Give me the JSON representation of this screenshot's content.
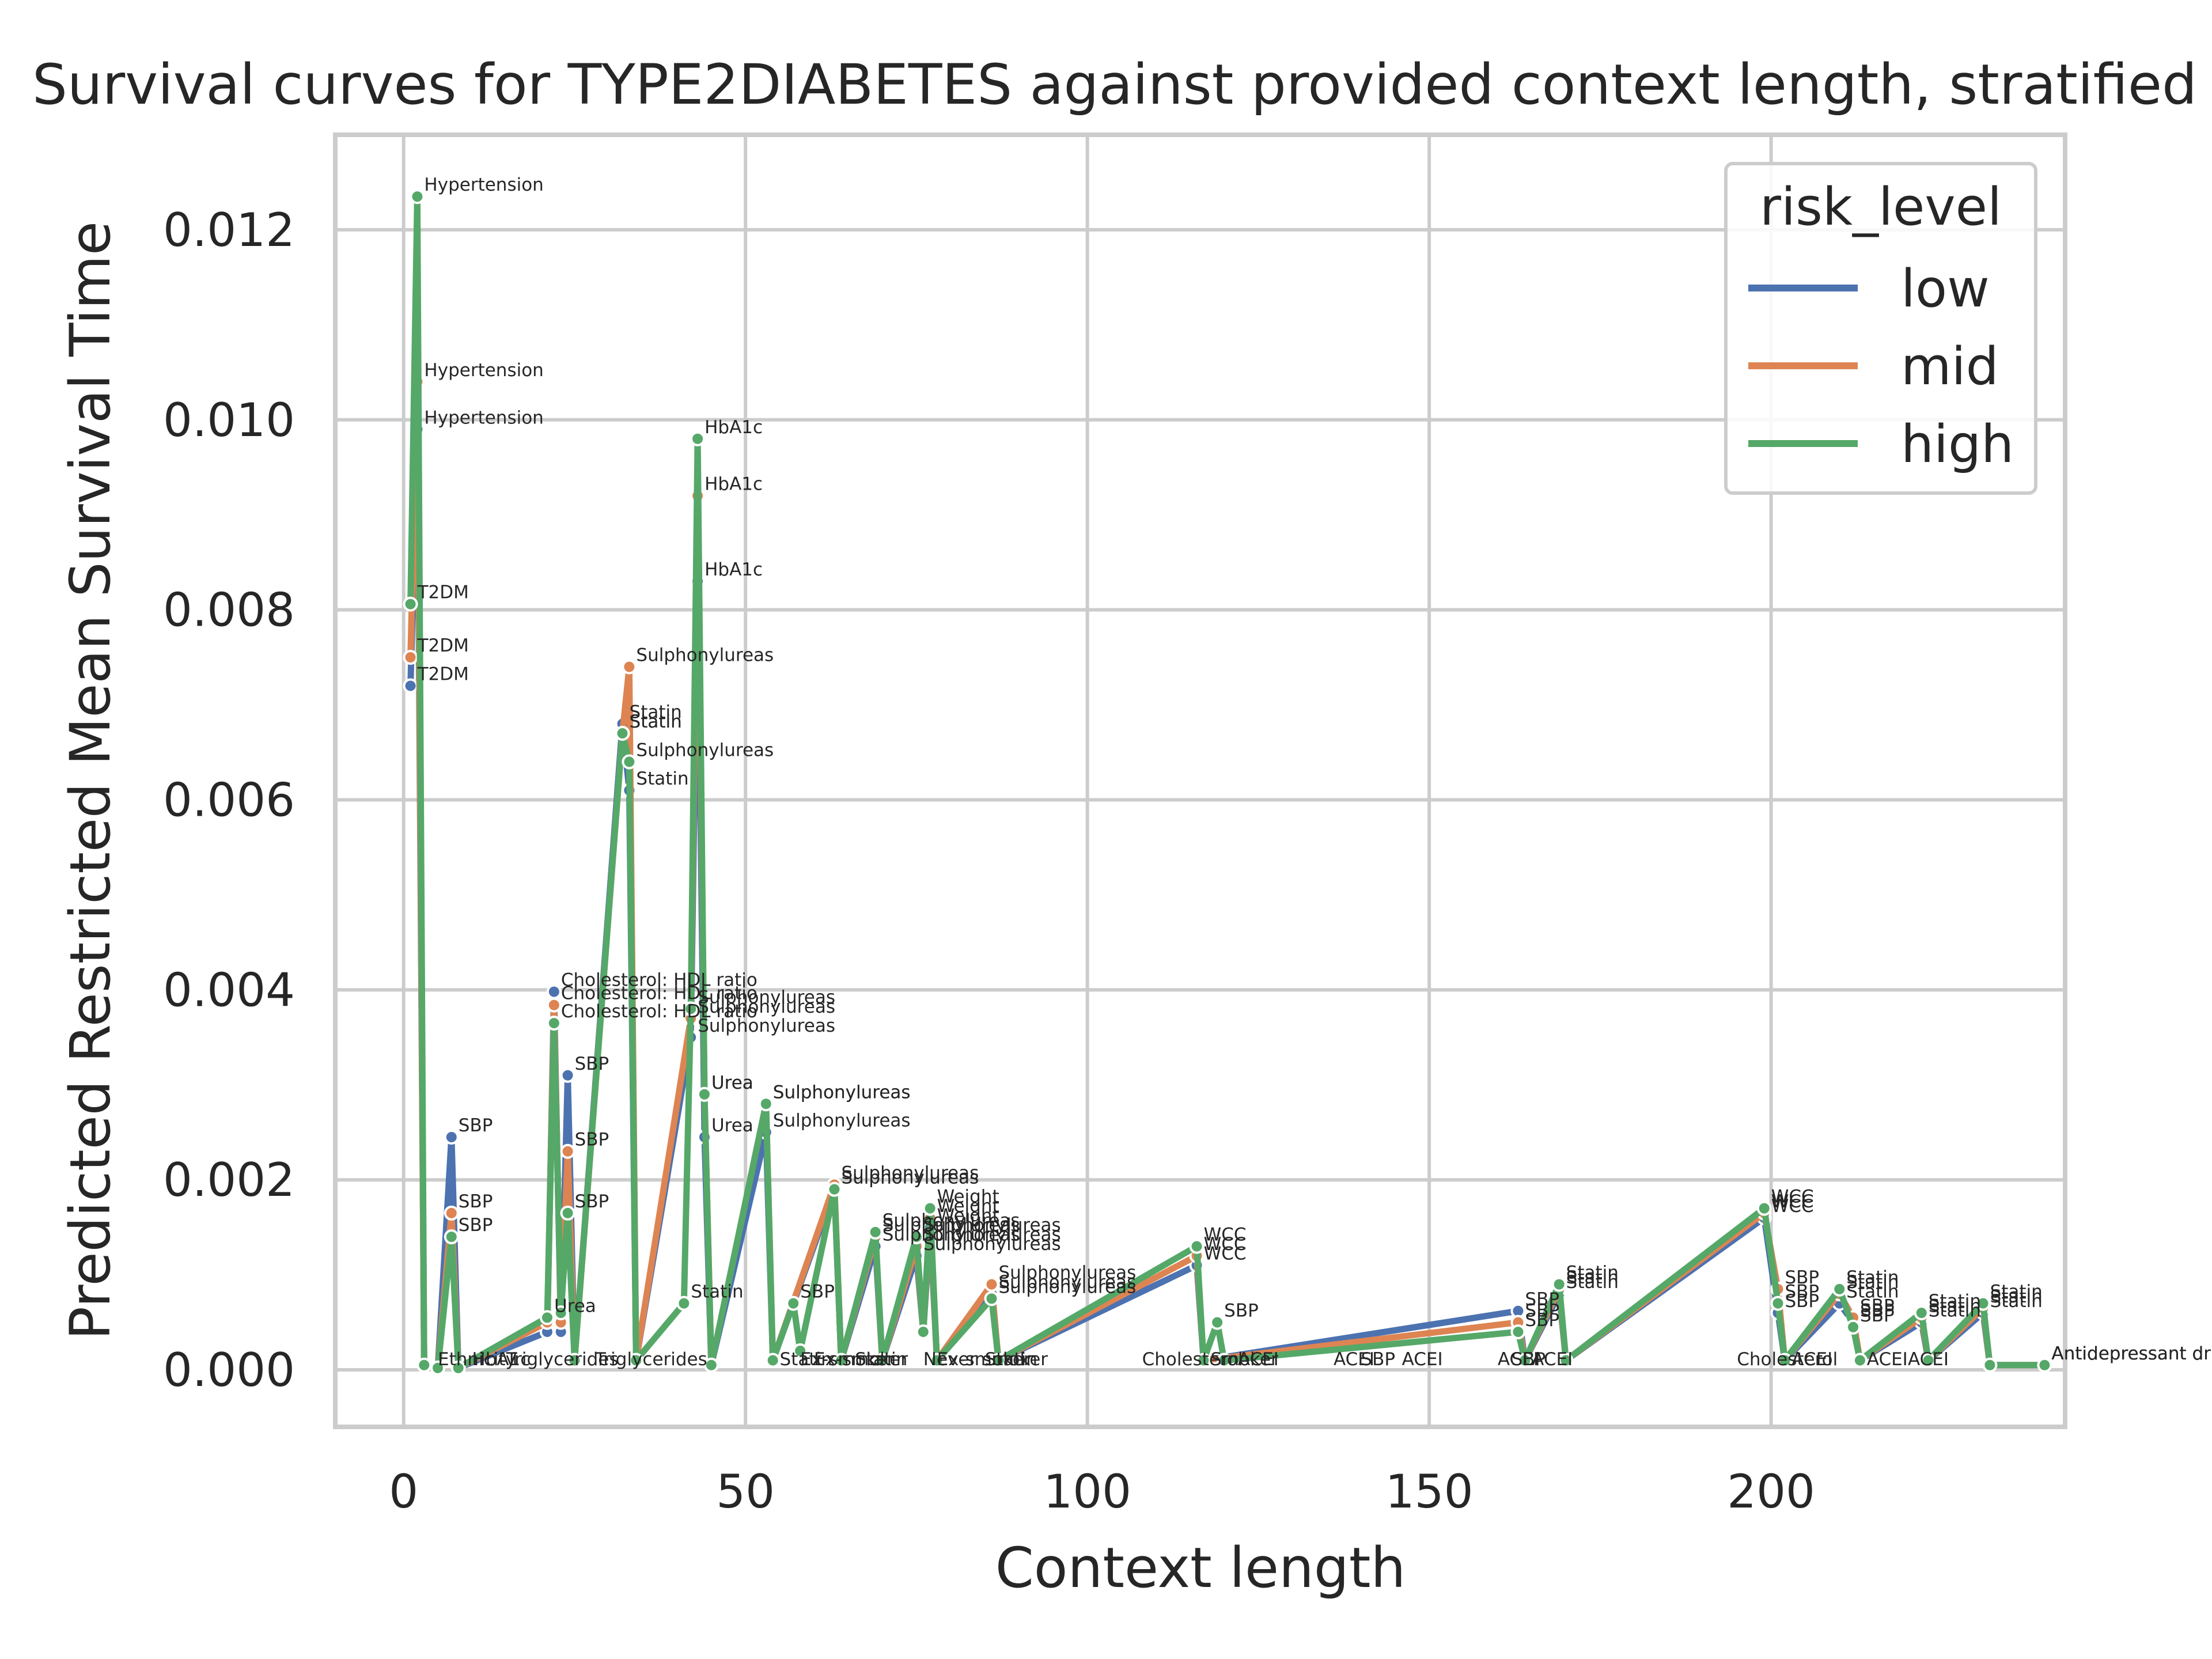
{
  "chart_data": {
    "type": "line",
    "title": "Survival curves for TYPE2DIABETES against provided context length, stratified",
    "xlabel": "Context length",
    "ylabel": "Predicted Restricted Mean Survival Time",
    "xlim": [
      -10,
      243
    ],
    "ylim": [
      -0.0006,
      0.013
    ],
    "xticks": [
      0,
      50,
      100,
      150,
      200
    ],
    "xtick_labels": [
      "0",
      "50",
      "100",
      "150",
      "200"
    ],
    "yticks": [
      0.0,
      0.002,
      0.004,
      0.006,
      0.008,
      0.01,
      0.012
    ],
    "ytick_labels": [
      "0.000",
      "0.002",
      "0.004",
      "0.006",
      "0.008",
      "0.010",
      "0.012"
    ],
    "grid": true,
    "legend": {
      "title": "risk_level",
      "placement": "top-right"
    },
    "series": [
      {
        "name": "low",
        "color": "#4c72b0",
        "points": [
          [
            1,
            0.0072,
            "T2DM"
          ],
          [
            2,
            0.0099,
            "Hypertension"
          ],
          [
            3,
            5e-05,
            ""
          ],
          [
            5,
            2e-05,
            ""
          ],
          [
            7,
            0.00245,
            "SBP"
          ],
          [
            8,
            2e-05,
            ""
          ],
          [
            21,
            0.0004,
            ""
          ],
          [
            22,
            0.00398,
            "Cholesterol: HDL ratio"
          ],
          [
            23,
            0.0004,
            ""
          ],
          [
            24,
            0.0031,
            "SBP"
          ],
          [
            25,
            0.0001,
            ""
          ],
          [
            32,
            0.0068,
            "Statin"
          ],
          [
            33,
            0.0061,
            "Statin"
          ],
          [
            34,
            0.0001,
            ""
          ],
          [
            42,
            0.0035,
            "Sulphonylureas"
          ],
          [
            43,
            0.0083,
            "HbA1c"
          ],
          [
            44,
            0.00245,
            "Urea"
          ],
          [
            45,
            5e-05,
            ""
          ],
          [
            53,
            0.0025,
            "Sulphonylureas"
          ],
          [
            54,
            0.0001,
            ""
          ],
          [
            63,
            0.0019,
            "Sulphonylureas"
          ],
          [
            64,
            0.0001,
            ""
          ],
          [
            69,
            0.0013,
            "Sulphonylureas"
          ],
          [
            70,
            0.0001,
            ""
          ],
          [
            75,
            0.0012,
            "Sulphonylureas"
          ],
          [
            76,
            0.0004,
            ""
          ],
          [
            77,
            0.0015,
            "Weight"
          ],
          [
            78,
            0.0001,
            ""
          ],
          [
            86,
            0.0008,
            "Sulphonylureas"
          ],
          [
            87,
            0.0001,
            ""
          ],
          [
            116,
            0.0011,
            "WCC"
          ],
          [
            117,
            0.0001,
            ""
          ],
          [
            163,
            0.00062,
            "SBP"
          ],
          [
            164,
            0.0001,
            ""
          ],
          [
            169,
            0.0008,
            "Statin"
          ],
          [
            170,
            0.0001,
            ""
          ],
          [
            199,
            0.0016,
            "WCC"
          ],
          [
            201,
            0.0006,
            "SBP"
          ],
          [
            202,
            0.0001,
            ""
          ],
          [
            210,
            0.0007,
            "Statin"
          ],
          [
            212,
            0.0005,
            "SBP"
          ],
          [
            213,
            0.0001,
            ""
          ],
          [
            222,
            0.0005,
            "Statin"
          ],
          [
            223,
            0.0001,
            ""
          ],
          [
            231,
            0.0006,
            "Statin"
          ],
          [
            232,
            5e-05,
            ""
          ],
          [
            240,
            5e-05,
            "Antidepressant drug"
          ]
        ]
      },
      {
        "name": "mid",
        "color": "#dd8452",
        "points": [
          [
            1,
            0.0075,
            "T2DM"
          ],
          [
            2,
            0.0104,
            "Hypertension"
          ],
          [
            3,
            5e-05,
            ""
          ],
          [
            5,
            2e-05,
            ""
          ],
          [
            7,
            0.00165,
            "SBP"
          ],
          [
            8,
            2e-05,
            ""
          ],
          [
            21,
            0.0005,
            ""
          ],
          [
            22,
            0.00384,
            "Cholesterol: HDL ratio"
          ],
          [
            23,
            0.0005,
            ""
          ],
          [
            24,
            0.0023,
            "SBP"
          ],
          [
            25,
            0.0001,
            ""
          ],
          [
            32,
            0.0067,
            "Statin"
          ],
          [
            33,
            0.0074,
            "Sulphonylureas"
          ],
          [
            34,
            0.0001,
            ""
          ],
          [
            42,
            0.0037,
            "Sulphonylureas"
          ],
          [
            43,
            0.0092,
            "HbA1c"
          ],
          [
            44,
            0.0029,
            "Urea"
          ],
          [
            45,
            5e-05,
            ""
          ],
          [
            53,
            0.0028,
            "Sulphonylureas"
          ],
          [
            54,
            0.0001,
            ""
          ],
          [
            63,
            0.00195,
            "Sulphonylureas"
          ],
          [
            64,
            0.0001,
            ""
          ],
          [
            69,
            0.0014,
            "Sulphonylureas"
          ],
          [
            70,
            0.0001,
            ""
          ],
          [
            75,
            0.0013,
            "Sulphonylureas"
          ],
          [
            76,
            0.0004,
            ""
          ],
          [
            77,
            0.0016,
            "Weight"
          ],
          [
            78,
            0.0001,
            ""
          ],
          [
            86,
            0.0009,
            "Sulphonylureas"
          ],
          [
            87,
            0.0001,
            ""
          ],
          [
            116,
            0.0012,
            "WCC"
          ],
          [
            117,
            0.0001,
            ""
          ],
          [
            163,
            0.0005,
            "SBP"
          ],
          [
            164,
            0.0001,
            ""
          ],
          [
            169,
            0.00085,
            "Statin"
          ],
          [
            170,
            0.0001,
            ""
          ],
          [
            199,
            0.00165,
            "WCC"
          ],
          [
            201,
            0.00085,
            "SBP"
          ],
          [
            202,
            0.0001,
            ""
          ],
          [
            210,
            0.0008,
            "Statin"
          ],
          [
            212,
            0.00055,
            "SBP"
          ],
          [
            213,
            0.0001,
            ""
          ],
          [
            222,
            0.00055,
            "Statin"
          ],
          [
            223,
            0.0001,
            ""
          ],
          [
            231,
            0.00065,
            "Statin"
          ],
          [
            232,
            5e-05,
            ""
          ],
          [
            240,
            5e-05,
            "Antidepressant drug"
          ]
        ]
      },
      {
        "name": "high",
        "color": "#55a868",
        "points": [
          [
            1,
            0.00806,
            "T2DM"
          ],
          [
            2,
            0.01235,
            "Hypertension"
          ],
          [
            3,
            5e-05,
            ""
          ],
          [
            5,
            2e-05,
            ""
          ],
          [
            7,
            0.0014,
            "SBP"
          ],
          [
            8,
            2e-05,
            ""
          ],
          [
            21,
            0.00055,
            "Urea"
          ],
          [
            22,
            0.00365,
            "Cholesterol: HDL ratio"
          ],
          [
            23,
            0.0006,
            ""
          ],
          [
            24,
            0.00165,
            "SBP"
          ],
          [
            25,
            0.0001,
            ""
          ],
          [
            32,
            0.0067,
            "Statin"
          ],
          [
            33,
            0.0064,
            "Sulphonylureas"
          ],
          [
            34,
            0.0001,
            ""
          ],
          [
            41,
            0.0007,
            "Statin"
          ],
          [
            42,
            0.0038,
            "Sulphonylureas"
          ],
          [
            43,
            0.0098,
            "HbA1c"
          ],
          [
            44,
            0.0029,
            "Urea"
          ],
          [
            45,
            5e-05,
            ""
          ],
          [
            53,
            0.0028,
            "Sulphonylureas"
          ],
          [
            54,
            0.0001,
            ""
          ],
          [
            57,
            0.0007,
            "SBP"
          ],
          [
            58,
            0.0002,
            ""
          ],
          [
            63,
            0.0019,
            "Sulphonylureas"
          ],
          [
            64,
            0.0001,
            ""
          ],
          [
            69,
            0.00145,
            "Sulphonylureas"
          ],
          [
            70,
            0.0001,
            ""
          ],
          [
            75,
            0.0014,
            "Sulphonylureas"
          ],
          [
            76,
            0.0004,
            ""
          ],
          [
            77,
            0.0017,
            "Weight"
          ],
          [
            78,
            0.0001,
            ""
          ],
          [
            86,
            0.00075,
            "Sulphonylureas"
          ],
          [
            87,
            0.0001,
            ""
          ],
          [
            116,
            0.0013,
            "WCC"
          ],
          [
            117,
            0.0001,
            ""
          ],
          [
            119,
            0.0005,
            "SBP"
          ],
          [
            120,
            0.0001,
            ""
          ],
          [
            163,
            0.0004,
            "SBP"
          ],
          [
            164,
            0.0001,
            ""
          ],
          [
            169,
            0.0009,
            "Statin"
          ],
          [
            170,
            0.0001,
            ""
          ],
          [
            199,
            0.0017,
            "WCC"
          ],
          [
            201,
            0.0007,
            "SBP"
          ],
          [
            202,
            0.0001,
            ""
          ],
          [
            210,
            0.00085,
            "Statin"
          ],
          [
            212,
            0.00045,
            "SBP"
          ],
          [
            213,
            0.0001,
            ""
          ],
          [
            222,
            0.0006,
            "Statin"
          ],
          [
            223,
            0.0001,
            ""
          ],
          [
            231,
            0.0007,
            "Statin"
          ],
          [
            232,
            5e-05,
            ""
          ],
          [
            240,
            5e-05,
            "Antidepressant drug"
          ]
        ]
      }
    ],
    "baseline_labels": [
      [
        5,
        "Ethnicity"
      ],
      [
        10,
        "HbA1c"
      ],
      [
        15,
        "Triglycerides"
      ],
      [
        28,
        "Triglycerides"
      ],
      [
        55,
        "Statin"
      ],
      [
        58,
        "Ex-smoker"
      ],
      [
        60,
        "Ex-smoker"
      ],
      [
        66,
        "Statin"
      ],
      [
        76,
        "Never smoker"
      ],
      [
        78,
        "Ex-smoker"
      ],
      [
        85,
        "Statin"
      ],
      [
        108,
        "Cholesterol"
      ],
      [
        118,
        "Smoker"
      ],
      [
        122,
        "ACEI"
      ],
      [
        136,
        "ACEI"
      ],
      [
        140,
        "SBP"
      ],
      [
        146,
        "ACEI"
      ],
      [
        160,
        "ACEI"
      ],
      [
        162,
        "SBP"
      ],
      [
        165,
        "ACEI"
      ],
      [
        195,
        "Cholesterol"
      ],
      [
        203,
        "ACEI"
      ],
      [
        214,
        "ACEI"
      ],
      [
        220,
        "ACEI"
      ]
    ]
  }
}
